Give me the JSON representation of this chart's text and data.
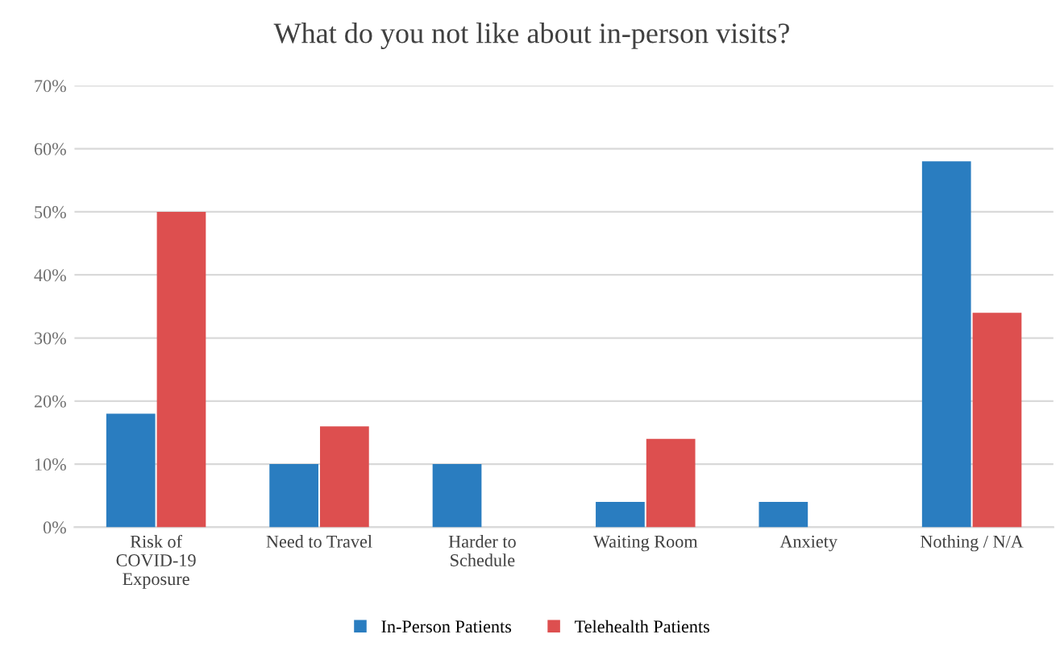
{
  "chart_data": {
    "type": "bar",
    "title": "What do you not like about in-person visits?",
    "categories": [
      "Risk of\nCOVID-19\nExposure",
      "Need to Travel",
      "Harder to\nSchedule",
      "Waiting Room",
      "Anxiety",
      "Nothing / N/A"
    ],
    "series": [
      {
        "name": "In-Person Patients",
        "color": "#2a7dc0",
        "values": [
          18,
          10,
          10,
          4,
          4,
          58
        ]
      },
      {
        "name": "Telehealth Patients",
        "color": "#dd4f4f",
        "values": [
          50,
          16,
          0,
          14,
          0,
          34
        ]
      }
    ],
    "ylim": [
      0,
      70
    ],
    "yticks": [
      {
        "value": 0,
        "label": "0%"
      },
      {
        "value": 10,
        "label": "10%"
      },
      {
        "value": 20,
        "label": "20%"
      },
      {
        "value": 30,
        "label": "30%"
      },
      {
        "value": 40,
        "label": "40%"
      },
      {
        "value": 50,
        "label": "50%"
      },
      {
        "value": 60,
        "label": "60%"
      },
      {
        "value": 70,
        "label": "70%"
      }
    ],
    "grid": "y",
    "legend": "bottom"
  }
}
